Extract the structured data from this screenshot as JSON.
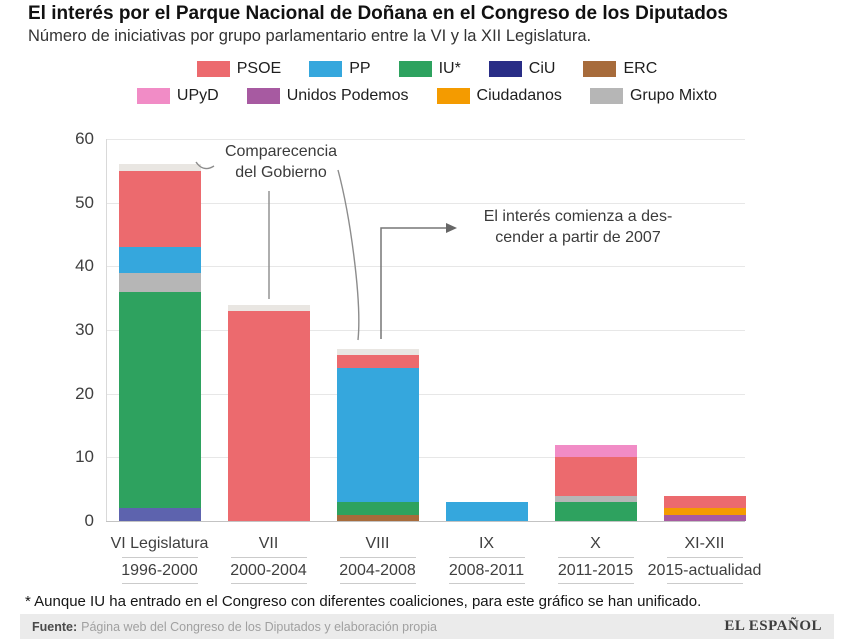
{
  "header": {
    "title": "El interés por el Parque Nacional de Doñana en el Congreso de los Diputados",
    "subtitle": "Número de iniciativas por grupo parlamentario entre la VI y la XII Legislatura."
  },
  "colors": {
    "PSOE": "#ec6a6e",
    "PP": "#35a7dd",
    "IU*": "#2ea25f",
    "CiU": "#292d86",
    "ERC": "#a76b3b",
    "UPyD": "#f18cc6",
    "Unidos Podemos": "#a75aa1",
    "Ciudadanos": "#f49b00",
    "Grupo Mixto": "#b6b6b6",
    "Comparecencia del Gobierno": "#e9e6e2"
  },
  "bar_color_overrides": {
    "CiU": "#5d63ae"
  },
  "legend": {
    "rows": [
      [
        "PSOE",
        "PP",
        "IU*",
        "CiU",
        "ERC"
      ],
      [
        "UPyD",
        "Unidos Podemos",
        "Ciudadanos",
        "Grupo Mixto"
      ]
    ]
  },
  "chart_data": {
    "type": "bar",
    "stacked": true,
    "title": "El interés por el Parque Nacional de Doñana en el Congreso de los Diputados",
    "subtitle": "Número de iniciativas por grupo parlamentario entre la VI y la XII Legislatura.",
    "xlabel": "",
    "ylabel": "",
    "ylim": [
      0,
      60
    ],
    "yticks": [
      0,
      10,
      20,
      30,
      40,
      50,
      60
    ],
    "grid": true,
    "legend_position": "top",
    "categories": [
      "VI Legislatura",
      "VII",
      "VIII",
      "IX",
      "X",
      "XI-XII"
    ],
    "category_years": [
      "1996-2000",
      "2000-2004",
      "2004-2008",
      "2008-2011",
      "2011-2015",
      "2015-actualidad"
    ],
    "series": [
      {
        "name": "PSOE",
        "values": [
          12,
          33,
          2,
          0,
          6,
          2
        ]
      },
      {
        "name": "PP",
        "values": [
          4,
          0,
          21,
          3,
          0,
          0
        ]
      },
      {
        "name": "IU*",
        "values": [
          34,
          0,
          2,
          0,
          3,
          0
        ]
      },
      {
        "name": "CiU",
        "values": [
          2,
          0,
          0,
          0,
          0,
          0
        ]
      },
      {
        "name": "ERC",
        "values": [
          0,
          0,
          1,
          0,
          0,
          0
        ]
      },
      {
        "name": "UPyD",
        "values": [
          0,
          0,
          0,
          0,
          2,
          0
        ]
      },
      {
        "name": "Unidos Podemos",
        "values": [
          0,
          0,
          0,
          0,
          0,
          1
        ]
      },
      {
        "name": "Ciudadanos",
        "values": [
          0,
          0,
          0,
          0,
          0,
          1
        ]
      },
      {
        "name": "Grupo Mixto",
        "values": [
          3,
          0,
          0,
          0,
          1,
          0
        ]
      },
      {
        "name": "Comparecencia del Gobierno",
        "values": [
          1,
          1,
          1,
          0,
          0,
          0
        ]
      }
    ],
    "totals": [
      56,
      34,
      27,
      3,
      12,
      4
    ],
    "bars": [
      {
        "segments": [
          [
            "CiU",
            2
          ],
          [
            "IU*",
            34
          ],
          [
            "Grupo Mixto",
            3
          ],
          [
            "PP",
            4
          ],
          [
            "PSOE",
            12
          ],
          [
            "Comparecencia del Gobierno",
            1
          ]
        ]
      },
      {
        "segments": [
          [
            "PSOE",
            33
          ],
          [
            "Comparecencia del Gobierno",
            1
          ]
        ]
      },
      {
        "segments": [
          [
            "ERC",
            1
          ],
          [
            "IU*",
            2
          ],
          [
            "PP",
            21
          ],
          [
            "PSOE",
            2
          ],
          [
            "Comparecencia del Gobierno",
            1
          ]
        ]
      },
      {
        "segments": [
          [
            "PP",
            3
          ]
        ]
      },
      {
        "segments": [
          [
            "IU*",
            3
          ],
          [
            "Grupo Mixto",
            1
          ],
          [
            "PSOE",
            6
          ],
          [
            "UPyD",
            2
          ]
        ]
      },
      {
        "segments": [
          [
            "Unidos Podemos",
            1
          ],
          [
            "Ciudadanos",
            1
          ],
          [
            "PSOE",
            2
          ]
        ]
      }
    ]
  },
  "annotations": {
    "comparecencia": {
      "line1": "Comparecencia",
      "line2": "del Gobierno"
    },
    "descenso": {
      "line1": "El interés comienza a des-",
      "line2": "cender a partir de 2007"
    }
  },
  "footnote": {
    "text": "* Aunque IU ha entrado en el Congreso con diferentes coaliciones, para este gráfico se han unificado."
  },
  "footer": {
    "source_label": "Fuente:",
    "source_text": "Página web del Congreso de los Diputados y elaboración propia",
    "brand": "EL ESPAÑOL"
  }
}
